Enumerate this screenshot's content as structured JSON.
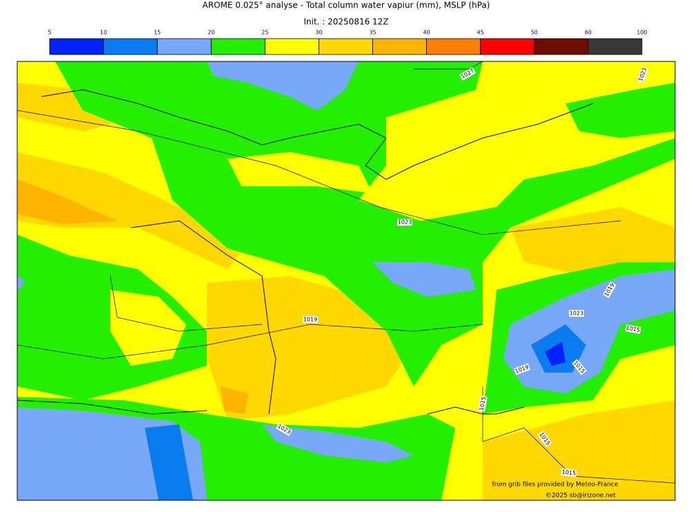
{
  "title": "AROME 0.025° analyse - Total column water vapiur (mm), MSLP (hPa)",
  "subtitle": "Init. : 20250816 12Z",
  "colorbar": {
    "ticks": [
      5,
      10,
      15,
      20,
      25,
      30,
      35,
      40,
      45,
      50,
      60,
      100
    ],
    "colors": [
      "#0022ff",
      "#0a7cf0",
      "#78a8f8",
      "#22f000",
      "#ffff00",
      "#ffd800",
      "#ffb400",
      "#ff8000",
      "#ff0000",
      "#6e0c00",
      "#383838"
    ]
  },
  "isobar_labels": [
    "1027",
    "1023",
    "1023",
    "1019",
    "1023",
    "1019",
    "1015",
    "1019",
    "1015",
    "1015",
    "1015",
    "1015",
    "1023"
  ],
  "credits": [
    "from grib files provided by Meteo-France",
    "©2025 sb@irizone.net"
  ]
}
